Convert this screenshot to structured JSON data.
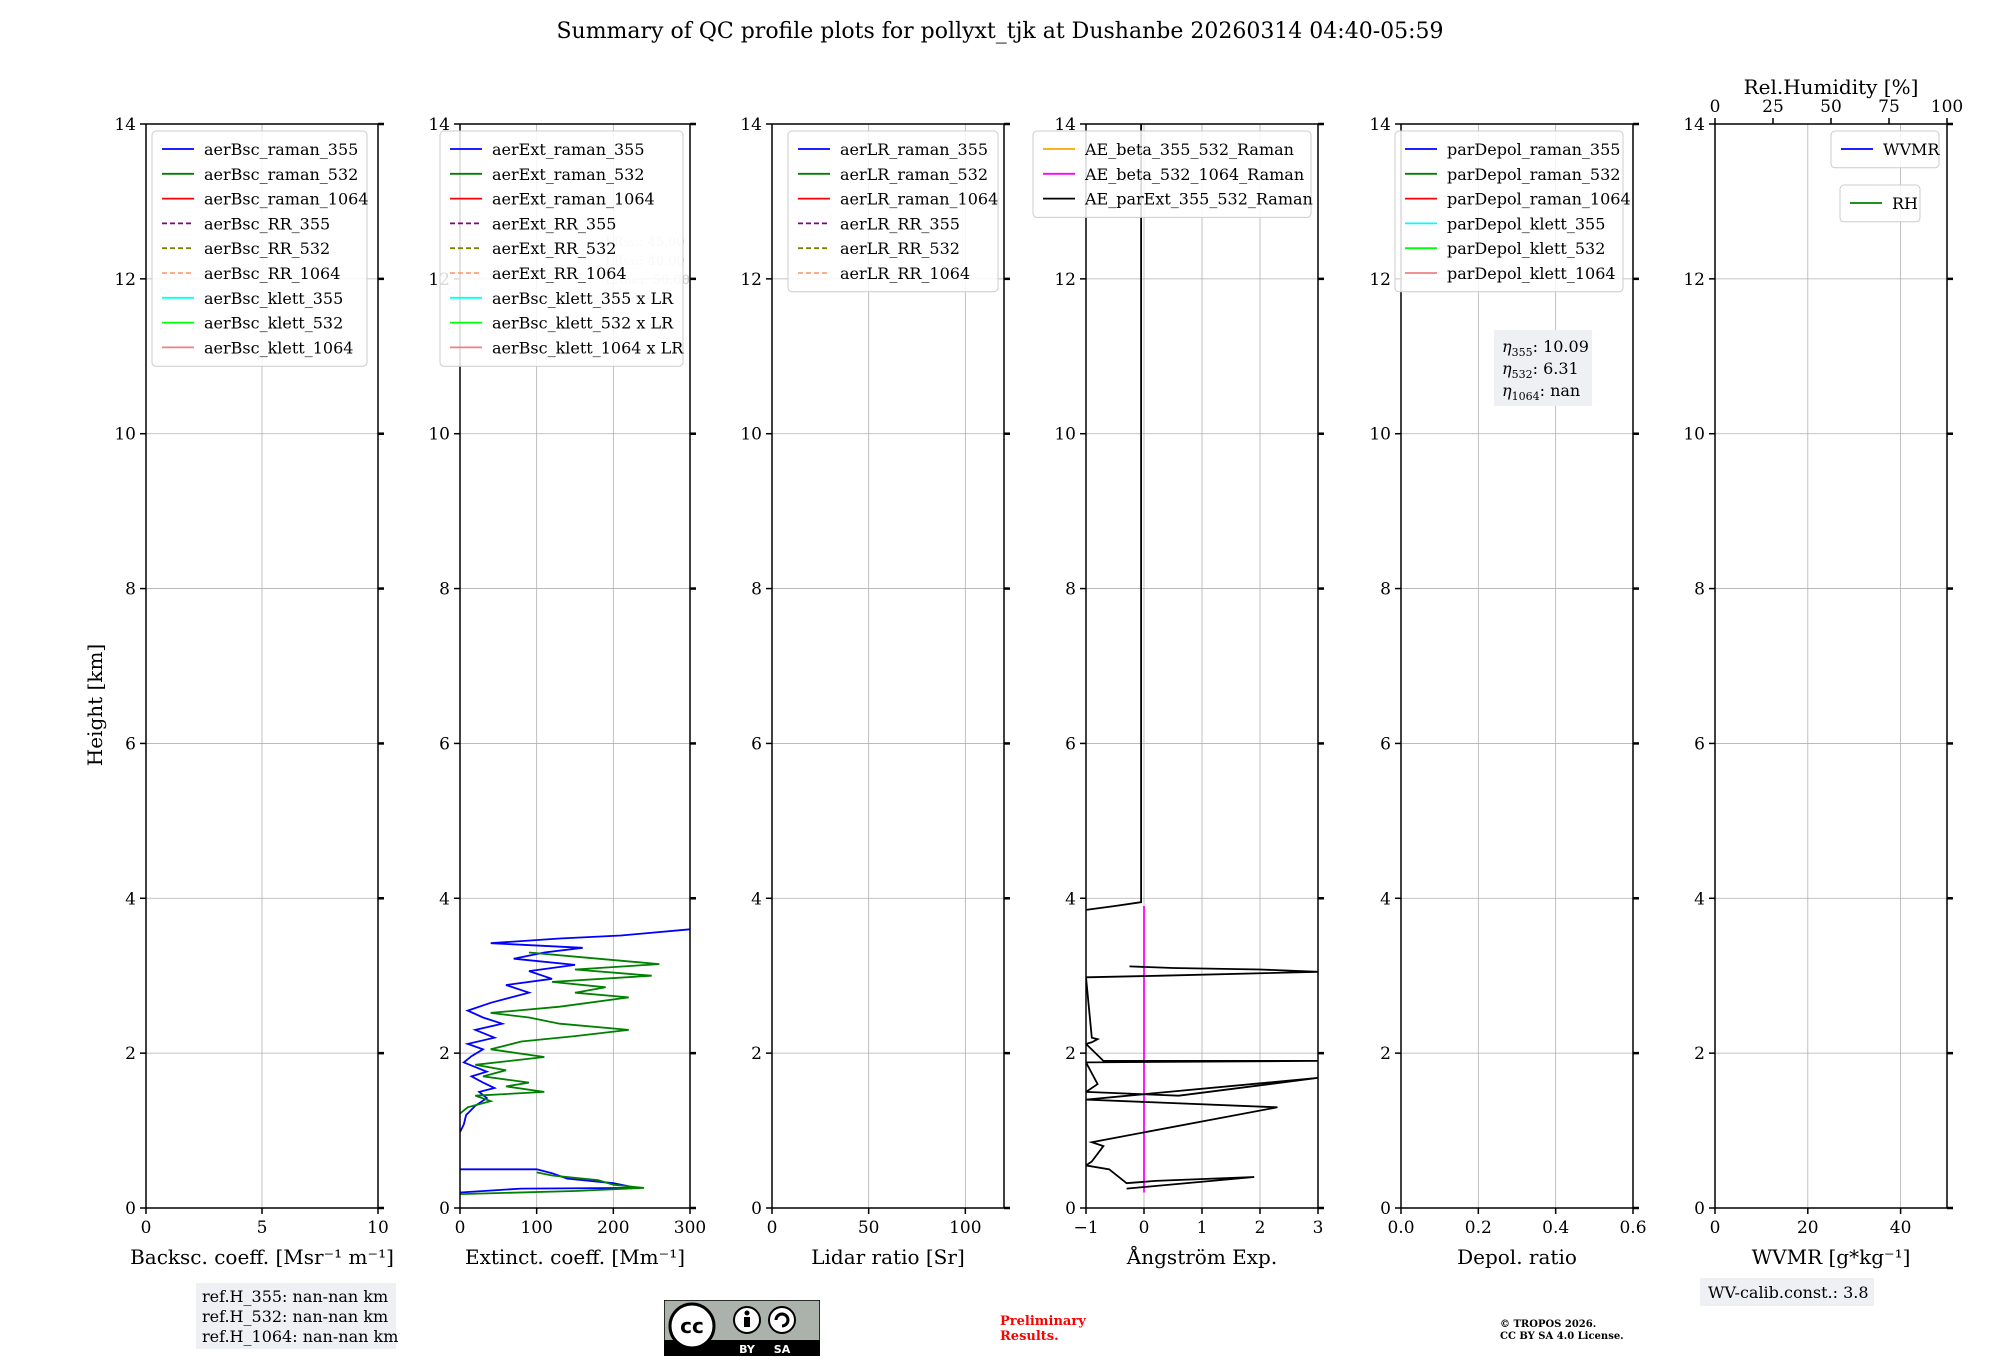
{
  "figure": {
    "title": "Summary of QC profile plots for pollyxt_tjk at Dushanbe 20260314 04:40-05:59",
    "ylabel": "Height [km]",
    "preliminary": [
      "Preliminary",
      "Results."
    ],
    "copyright": [
      "© TROPOS 2026.",
      "CC BY SA 4.0 License."
    ],
    "cc_badge": {
      "cc": "cc",
      "by": "BY",
      "sa": "SA"
    }
  },
  "colors": {
    "blue": "#0000ff",
    "green": "#008000",
    "red": "#ff0000",
    "purple": "#800080",
    "olive": "#808000",
    "salmon": "#ffa07a",
    "cyan": "#00ffff",
    "lime": "#00ff00",
    "lightcoral": "#f08080",
    "orange": "#ffa500",
    "magenta": "#ff00ff",
    "black": "#000000",
    "grid": "#b0b0b0",
    "preliminary": "#ff0000",
    "box_bg": "#eef0f4"
  },
  "chart_data": [
    {
      "id": "backscatter",
      "type": "line",
      "xlabel": "Backsc. coeff. [Msr⁻¹ m⁻¹]",
      "xlim": [
        0,
        10
      ],
      "xticks": [
        0,
        5,
        10
      ],
      "ylim": [
        0,
        14
      ],
      "yticks": [
        0,
        2,
        4,
        6,
        8,
        10,
        12,
        14
      ],
      "grid": true,
      "legend_position": "top-left",
      "legend": [
        {
          "label": "aerBsc_raman_355",
          "color": "#0000ff",
          "dash": false
        },
        {
          "label": "aerBsc_raman_532",
          "color": "#008000",
          "dash": false
        },
        {
          "label": "aerBsc_raman_1064",
          "color": "#ff0000",
          "dash": false
        },
        {
          "label": "aerBsc_RR_355",
          "color": "#800080",
          "dash": true
        },
        {
          "label": "aerBsc_RR_532",
          "color": "#808000",
          "dash": true
        },
        {
          "label": "aerBsc_RR_1064",
          "color": "#ffa07a",
          "dash": true
        },
        {
          "label": "aerBsc_klett_355",
          "color": "#00ffff",
          "dash": false
        },
        {
          "label": "aerBsc_klett_532",
          "color": "#00ff00",
          "dash": false
        },
        {
          "label": "aerBsc_klett_1064",
          "color": "#f08080",
          "dash": false
        }
      ],
      "series": [],
      "note": [
        "ref.H_355: nan-nan km",
        "ref.H_532: nan-nan km",
        "ref.H_1064: nan-nan km"
      ]
    },
    {
      "id": "extinction",
      "type": "line",
      "xlabel": "Extinct. coeff. [Mm⁻¹]",
      "xlim": [
        0,
        300
      ],
      "xticks": [
        0,
        100,
        200,
        300
      ],
      "ylim": [
        0,
        14
      ],
      "yticks": [
        0,
        2,
        4,
        6,
        8,
        10,
        12,
        14
      ],
      "grid": true,
      "legend_position": "top-left",
      "legend": [
        {
          "label": "aerExt_raman_355",
          "color": "#0000ff",
          "dash": false
        },
        {
          "label": "aerExt_raman_532",
          "color": "#008000",
          "dash": false
        },
        {
          "label": "aerExt_raman_1064",
          "color": "#ff0000",
          "dash": false
        },
        {
          "label": "aerExt_RR_355",
          "color": "#800080",
          "dash": true
        },
        {
          "label": "aerExt_RR_532",
          "color": "#808000",
          "dash": true
        },
        {
          "label": "aerExt_RR_1064",
          "color": "#ffa07a",
          "dash": true
        },
        {
          "label": "aerBsc_klett_355 x LR",
          "color": "#00ffff",
          "dash": false
        },
        {
          "label": "aerBsc_klett_532 x LR",
          "color": "#00ff00",
          "dash": false
        },
        {
          "label": "aerBsc_klett_1064 x LR",
          "color": "#f08080",
          "dash": false
        }
      ],
      "faded_note": [
        "LR₃₅₅: 45.00",
        "LR₅₃₂: 40.00",
        "LR₁₀₆₄: 50.00"
      ],
      "series": [
        {
          "name": "aerExt_raman_355",
          "color": "#0000ff",
          "points": [
            [
              0,
              0.98
            ],
            [
              5,
              1.08
            ],
            [
              8,
              1.2
            ],
            [
              20,
              1.32
            ],
            [
              35,
              1.42
            ],
            [
              25,
              1.5
            ],
            [
              45,
              1.55
            ],
            [
              30,
              1.62
            ],
            [
              15,
              1.7
            ],
            [
              35,
              1.76
            ],
            [
              20,
              1.82
            ],
            [
              5,
              1.88
            ],
            [
              15,
              1.96
            ],
            [
              30,
              2.05
            ],
            [
              10,
              2.12
            ],
            [
              45,
              2.2
            ],
            [
              20,
              2.3
            ],
            [
              55,
              2.38
            ],
            [
              30,
              2.46
            ],
            [
              10,
              2.55
            ],
            [
              40,
              2.65
            ],
            [
              90,
              2.78
            ],
            [
              60,
              2.88
            ],
            [
              120,
              2.96
            ],
            [
              90,
              3.06
            ],
            [
              150,
              3.14
            ],
            [
              70,
              3.22
            ],
            [
              110,
              3.3
            ],
            [
              160,
              3.36
            ],
            [
              40,
              3.42
            ],
            [
              130,
              3.48
            ],
            [
              210,
              3.52
            ],
            [
              300,
              3.6
            ]
          ]
        },
        {
          "name": "aerExt_raman_532",
          "color": "#008000",
          "points": [
            [
              0,
              1.22
            ],
            [
              10,
              1.3
            ],
            [
              40,
              1.38
            ],
            [
              20,
              1.45
            ],
            [
              110,
              1.5
            ],
            [
              60,
              1.57
            ],
            [
              90,
              1.62
            ],
            [
              30,
              1.7
            ],
            [
              60,
              1.78
            ],
            [
              20,
              1.85
            ],
            [
              110,
              1.95
            ],
            [
              40,
              2.05
            ],
            [
              80,
              2.15
            ],
            [
              150,
              2.22
            ],
            [
              220,
              2.3
            ],
            [
              130,
              2.38
            ],
            [
              90,
              2.46
            ],
            [
              40,
              2.52
            ],
            [
              130,
              2.6
            ],
            [
              220,
              2.72
            ],
            [
              150,
              2.78
            ],
            [
              190,
              2.85
            ],
            [
              120,
              2.92
            ],
            [
              250,
              3.0
            ],
            [
              150,
              3.08
            ],
            [
              260,
              3.15
            ],
            [
              180,
              3.22
            ],
            [
              90,
              3.3
            ]
          ]
        },
        {
          "name": "aerExt_raman_355_low",
          "color": "#0000ff",
          "points": [
            [
              0,
              0.2
            ],
            [
              80,
              0.25
            ],
            [
              230,
              0.26
            ],
            [
              200,
              0.32
            ],
            [
              140,
              0.38
            ],
            [
              120,
              0.45
            ],
            [
              100,
              0.5
            ],
            [
              0,
              0.5
            ]
          ]
        },
        {
          "name": "aerExt_raman_532_low",
          "color": "#008000",
          "points": [
            [
              0,
              0.18
            ],
            [
              150,
              0.22
            ],
            [
              240,
              0.26
            ],
            [
              200,
              0.3
            ],
            [
              180,
              0.36
            ],
            [
              120,
              0.42
            ],
            [
              100,
              0.46
            ]
          ]
        }
      ]
    },
    {
      "id": "lidar_ratio",
      "type": "line",
      "xlabel": "Lidar ratio [Sr]",
      "xlim": [
        0,
        120
      ],
      "xticks": [
        0,
        50,
        100
      ],
      "ylim": [
        0,
        14
      ],
      "yticks": [
        0,
        2,
        4,
        6,
        8,
        10,
        12,
        14
      ],
      "grid": true,
      "legend_position": "top-left",
      "legend": [
        {
          "label": "aerLR_raman_355",
          "color": "#0000ff",
          "dash": false
        },
        {
          "label": "aerLR_raman_532",
          "color": "#008000",
          "dash": false
        },
        {
          "label": "aerLR_raman_1064",
          "color": "#ff0000",
          "dash": false
        },
        {
          "label": "aerLR_RR_355",
          "color": "#800080",
          "dash": true
        },
        {
          "label": "aerLR_RR_532",
          "color": "#808000",
          "dash": true
        },
        {
          "label": "aerLR_RR_1064",
          "color": "#ffa07a",
          "dash": true
        }
      ],
      "series": []
    },
    {
      "id": "angstrom",
      "type": "line",
      "xlabel": "Ångström Exp.",
      "xlim": [
        -1,
        3
      ],
      "xticks": [
        -1,
        0,
        1,
        2,
        3
      ],
      "xtick_labels": [
        "−1",
        "0",
        "1",
        "2",
        "3"
      ],
      "ylim": [
        0,
        14
      ],
      "yticks": [
        0,
        2,
        4,
        6,
        8,
        10,
        12,
        14
      ],
      "grid": true,
      "legend_position": "top-left",
      "legend": [
        {
          "label": "AE_beta_355_532_Raman",
          "color": "#ffa500",
          "dash": false
        },
        {
          "label": "AE_beta_532_1064_Raman",
          "color": "#ff00ff",
          "dash": false
        },
        {
          "label": "AE_parExt_355_532_Raman",
          "color": "#000000",
          "dash": false
        }
      ],
      "series": [
        {
          "name": "AE_beta_532_1064_Raman",
          "color": "#ff00ff",
          "points": [
            [
              0,
              0.2
            ],
            [
              0,
              3.9
            ]
          ]
        },
        {
          "name": "AE_parExt_355_532_Raman_upper",
          "color": "#000000",
          "points": [
            [
              -0.05,
              14
            ],
            [
              -0.05,
              3.95
            ],
            [
              -0.5,
              3.9
            ],
            [
              -1,
              3.85
            ]
          ]
        },
        {
          "name": "AE_parExt_355_532_Raman_lower",
          "color": "#000000",
          "points": [
            [
              -0.25,
              3.12
            ],
            [
              0.5,
              3.1
            ],
            [
              2.0,
              3.08
            ],
            [
              3,
              3.05
            ],
            [
              0.3,
              3.0
            ],
            [
              -1,
              2.98
            ],
            [
              -0.9,
              2.2
            ],
            [
              -0.8,
              2.18
            ],
            [
              -0.9,
              2.14
            ],
            [
              -1,
              2.12
            ],
            [
              -0.7,
              1.9
            ],
            [
              3,
              1.9
            ],
            [
              -1,
              1.88
            ],
            [
              -0.8,
              1.6
            ],
            [
              -1,
              1.5
            ],
            [
              0.6,
              1.45
            ],
            [
              3,
              1.68
            ],
            [
              -1,
              1.4
            ],
            [
              2.3,
              1.3
            ],
            [
              -0.9,
              0.85
            ],
            [
              -0.7,
              0.8
            ],
            [
              -0.9,
              0.6
            ],
            [
              -1,
              0.55
            ],
            [
              -0.6,
              0.5
            ],
            [
              -0.3,
              0.32
            ],
            [
              0.2,
              0.35
            ],
            [
              1.9,
              0.4
            ],
            [
              -0.3,
              0.25
            ]
          ]
        }
      ]
    },
    {
      "id": "depolarization",
      "type": "line",
      "xlabel": "Depol. ratio",
      "xlim": [
        0,
        0.6
      ],
      "xticks": [
        0,
        0.2,
        0.4,
        0.6
      ],
      "xtick_labels": [
        "0.0",
        "0.2",
        "0.4",
        "0.6"
      ],
      "ylim": [
        0,
        14
      ],
      "yticks": [
        0,
        2,
        4,
        6,
        8,
        10,
        12,
        14
      ],
      "grid": true,
      "legend_position": "top-left",
      "legend": [
        {
          "label": "parDepol_raman_355",
          "color": "#0000ff",
          "dash": false
        },
        {
          "label": "parDepol_raman_532",
          "color": "#008000",
          "dash": false
        },
        {
          "label": "parDepol_raman_1064",
          "color": "#ff0000",
          "dash": false
        },
        {
          "label": "parDepol_klett_355",
          "color": "#00ffff",
          "dash": false
        },
        {
          "label": "parDepol_klett_532",
          "color": "#00ff00",
          "dash": false
        },
        {
          "label": "parDepol_klett_1064",
          "color": "#f08080",
          "dash": false
        }
      ],
      "series": [],
      "eta": [
        {
          "sym": "η",
          "sub": "355",
          "value": ": 10.09"
        },
        {
          "sym": "η",
          "sub": "532",
          "value": ": 6.31"
        },
        {
          "sym": "η",
          "sub": "1064",
          "value": ": nan"
        }
      ]
    },
    {
      "id": "wvmr",
      "type": "line",
      "xlabel": "WVMR [g*kg⁻¹]",
      "xlim": [
        0,
        50
      ],
      "xticks": [
        0,
        20,
        40
      ],
      "ylim": [
        0,
        14
      ],
      "yticks": [
        0,
        2,
        4,
        6,
        8,
        10,
        12,
        14
      ],
      "grid": true,
      "top_axis": {
        "label": "Rel.Humidity [%]",
        "xlim": [
          0,
          100
        ],
        "xticks": [
          0,
          25,
          50,
          75,
          100
        ]
      },
      "legend": [
        {
          "label": "WVMR",
          "color": "#0000ff",
          "dash": false
        }
      ],
      "legend2": [
        {
          "label": "RH",
          "color": "#008000",
          "dash": false
        }
      ],
      "series": [],
      "note": [
        "WV-calib.const.: 3.8"
      ]
    }
  ]
}
